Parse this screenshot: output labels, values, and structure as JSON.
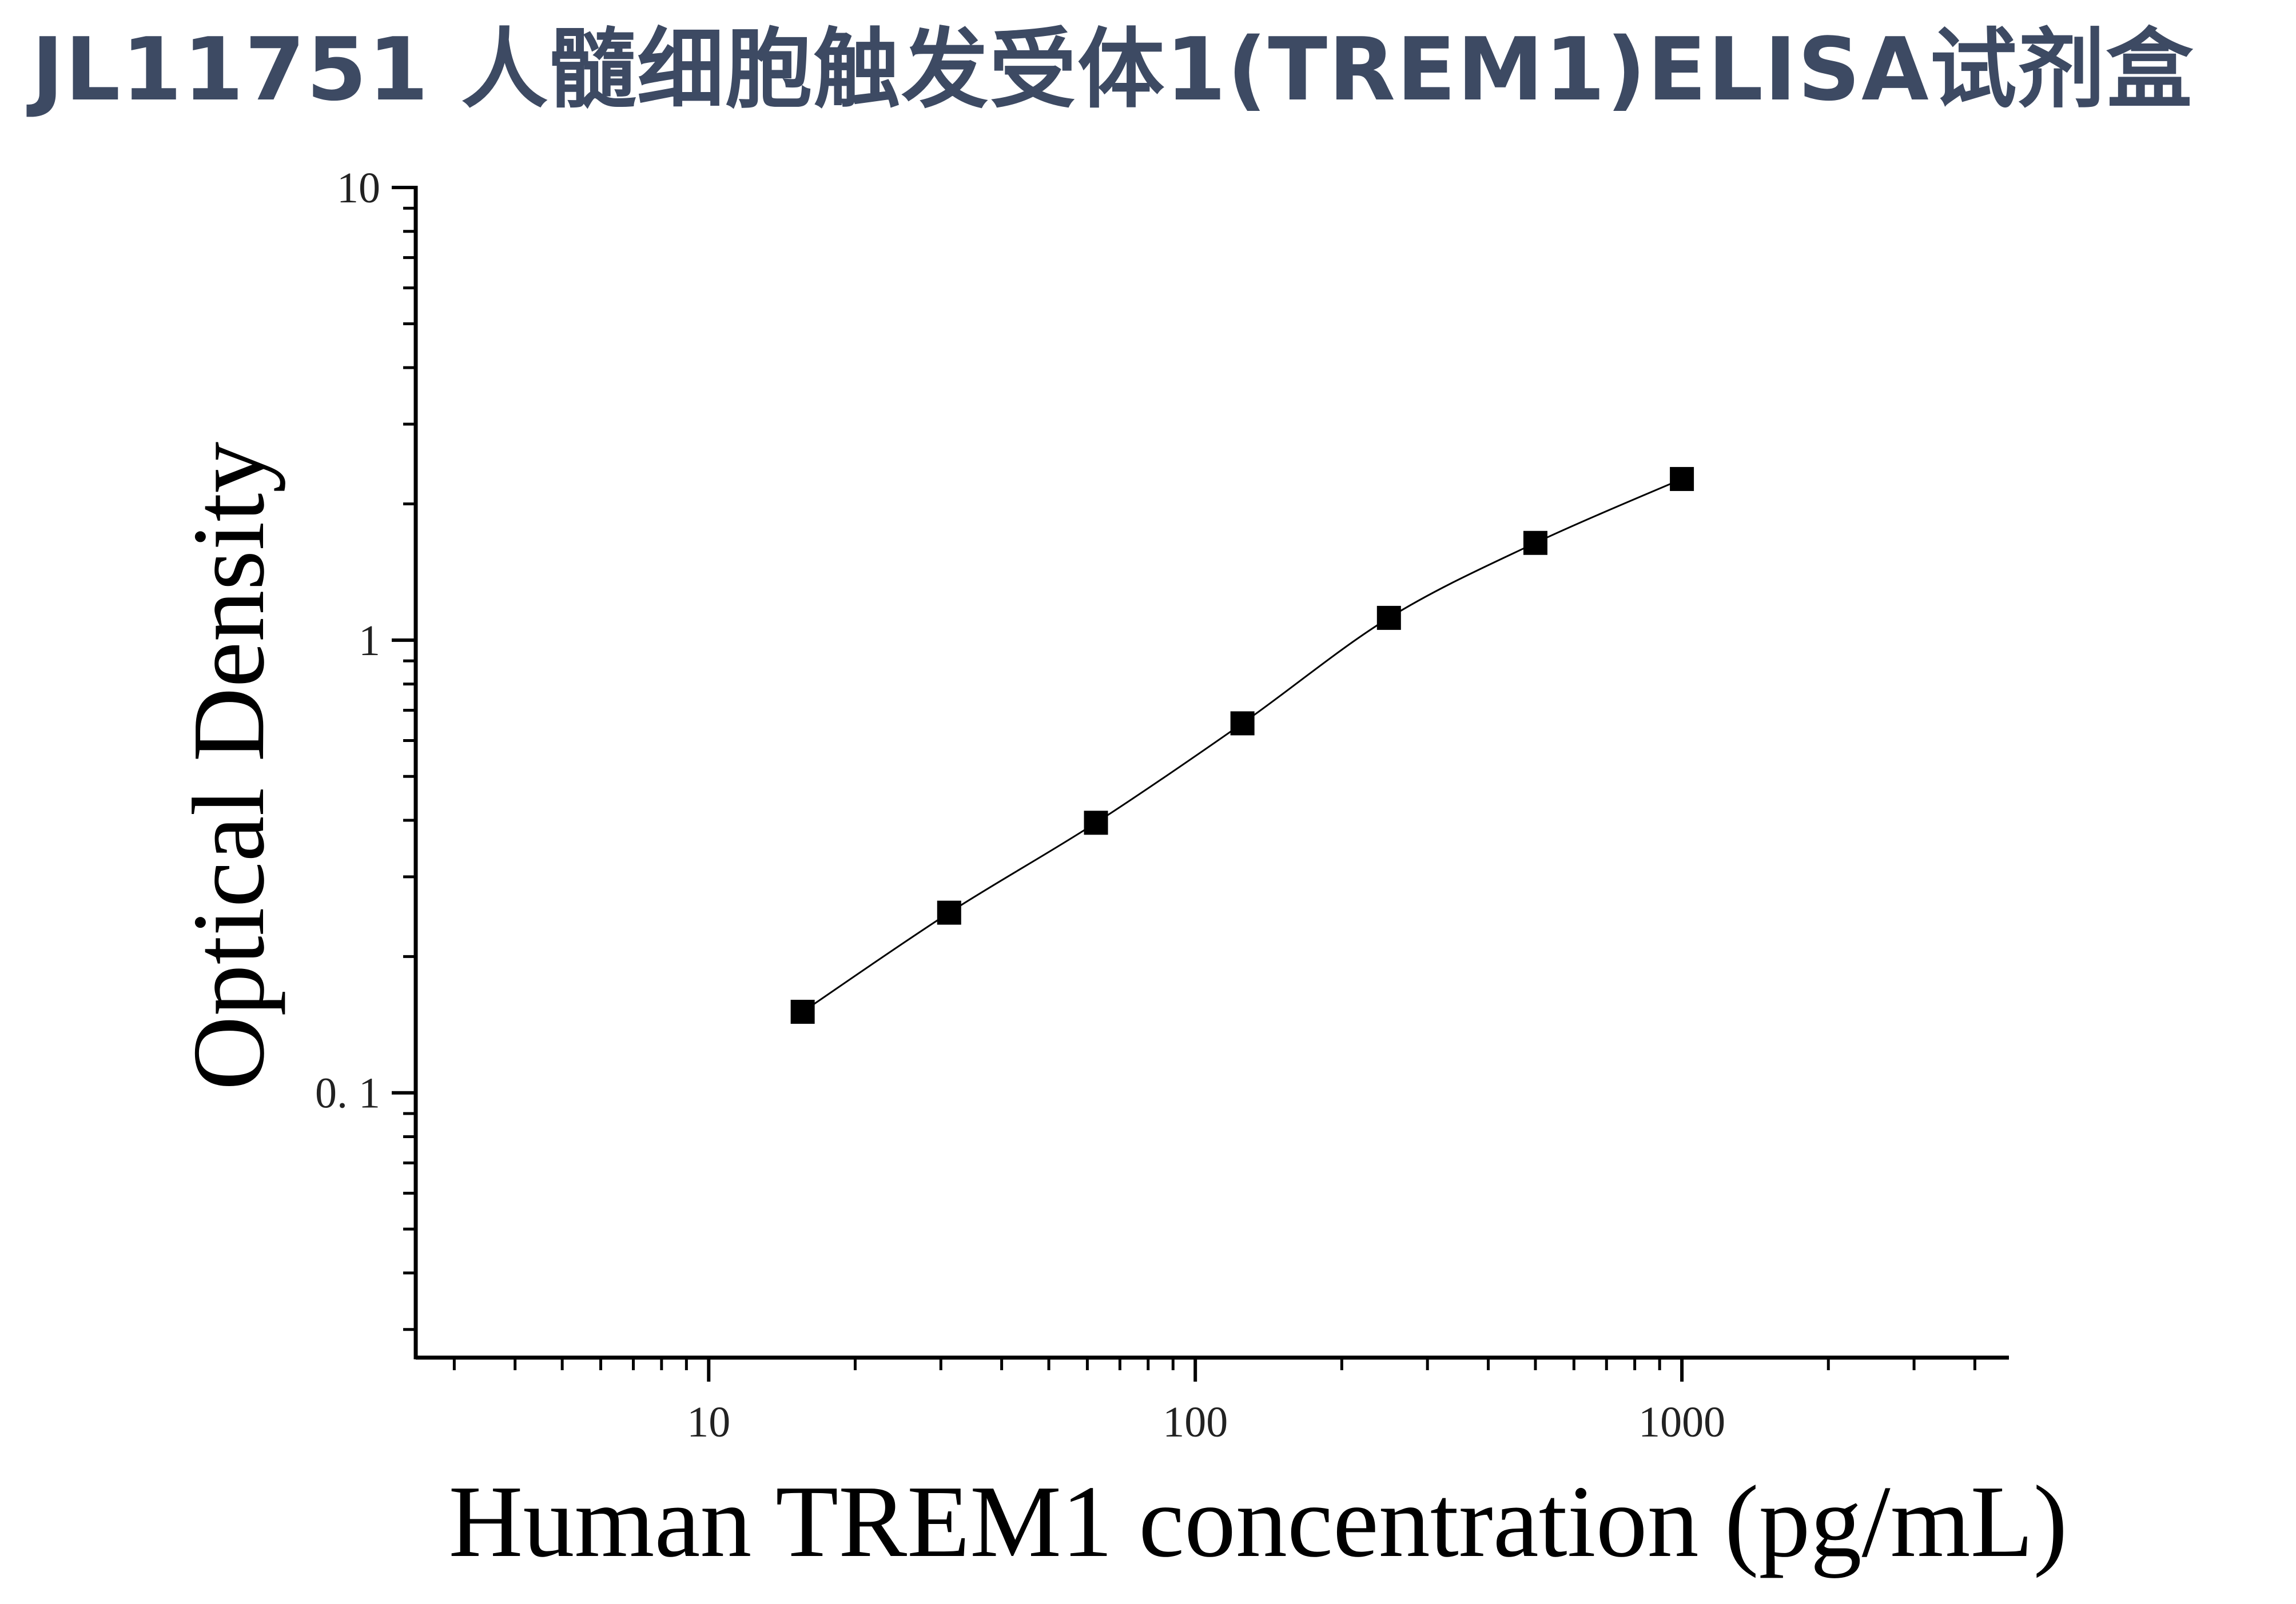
{
  "title": "JL11751 人髓细胞触发受体1(TREM1)ELISA试剂盒",
  "colors": {
    "title": "#3d4a63",
    "axis": "#000000",
    "marker": "#000000",
    "curve": "#000000"
  },
  "chart_data": {
    "type": "scatter",
    "title": "",
    "xlabel": "Human TREM1 concentration (pg/mL)",
    "ylabel": "Optical Density",
    "x_scale": "log",
    "y_scale": "log",
    "xlim": [
      2.5,
      4700
    ],
    "ylim": [
      0.026,
      10
    ],
    "x_ticks": [
      {
        "value": 10,
        "label": "10"
      },
      {
        "value": 100,
        "label": "100"
      },
      {
        "value": 1000,
        "label": "1000"
      }
    ],
    "y_ticks": [
      {
        "value": 0.1,
        "label": "0. 1"
      },
      {
        "value": 1,
        "label": "1"
      },
      {
        "value": 10,
        "label": "10"
      }
    ],
    "grid": false,
    "legend": "none",
    "marker": "square",
    "fit_curve": true,
    "series": [
      {
        "x": [
          15.6,
          31.2,
          62.5,
          125,
          250,
          500,
          1000
        ],
        "y": [
          0.151,
          0.25,
          0.395,
          0.655,
          1.12,
          1.64,
          2.27
        ]
      }
    ]
  }
}
